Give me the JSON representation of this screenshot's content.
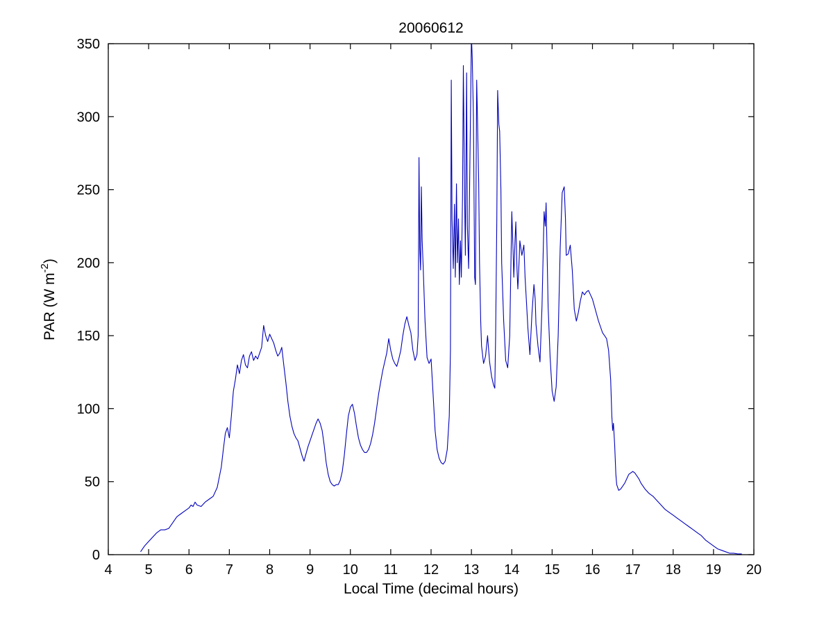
{
  "figure": {
    "title": "20060612"
  },
  "chart_data": {
    "type": "line",
    "title": "20060612",
    "xlabel": "Local Time (decimal hours)",
    "ylabel": "PAR (W m^-2)",
    "ylabel_parts": {
      "prefix": "PAR (W m",
      "sup": "-2",
      "suffix": ")"
    },
    "xlim": [
      4,
      20
    ],
    "ylim": [
      0,
      350
    ],
    "xticks": [
      4,
      5,
      6,
      7,
      8,
      9,
      10,
      11,
      12,
      13,
      14,
      15,
      16,
      17,
      18,
      19,
      20
    ],
    "yticks": [
      0,
      50,
      100,
      150,
      200,
      250,
      300,
      350
    ],
    "grid": false,
    "legend": "none",
    "line_color": "#0000bb",
    "series": [
      {
        "name": "PAR",
        "color": "#0000bb",
        "points": [
          [
            4.8,
            2
          ],
          [
            4.85,
            4
          ],
          [
            4.9,
            6
          ],
          [
            5.0,
            9
          ],
          [
            5.1,
            12
          ],
          [
            5.2,
            15
          ],
          [
            5.3,
            17
          ],
          [
            5.4,
            17
          ],
          [
            5.5,
            18
          ],
          [
            5.6,
            22
          ],
          [
            5.7,
            26
          ],
          [
            5.8,
            28
          ],
          [
            5.9,
            30
          ],
          [
            6.0,
            32
          ],
          [
            6.05,
            34
          ],
          [
            6.1,
            33
          ],
          [
            6.15,
            36
          ],
          [
            6.2,
            34
          ],
          [
            6.3,
            33
          ],
          [
            6.4,
            36
          ],
          [
            6.5,
            38
          ],
          [
            6.6,
            40
          ],
          [
            6.7,
            46
          ],
          [
            6.8,
            60
          ],
          [
            6.85,
            72
          ],
          [
            6.9,
            83
          ],
          [
            6.95,
            87
          ],
          [
            7.0,
            80
          ],
          [
            7.05,
            95
          ],
          [
            7.1,
            112
          ],
          [
            7.15,
            120
          ],
          [
            7.2,
            130
          ],
          [
            7.25,
            124
          ],
          [
            7.3,
            133
          ],
          [
            7.35,
            137
          ],
          [
            7.4,
            130
          ],
          [
            7.45,
            128
          ],
          [
            7.5,
            136
          ],
          [
            7.55,
            139
          ],
          [
            7.6,
            133
          ],
          [
            7.65,
            136
          ],
          [
            7.7,
            134
          ],
          [
            7.75,
            138
          ],
          [
            7.8,
            142
          ],
          [
            7.85,
            157
          ],
          [
            7.9,
            150
          ],
          [
            7.95,
            146
          ],
          [
            8.0,
            151
          ],
          [
            8.05,
            148
          ],
          [
            8.1,
            145
          ],
          [
            8.15,
            140
          ],
          [
            8.2,
            136
          ],
          [
            8.25,
            138
          ],
          [
            8.3,
            142
          ],
          [
            8.35,
            130
          ],
          [
            8.4,
            118
          ],
          [
            8.45,
            105
          ],
          [
            8.5,
            95
          ],
          [
            8.55,
            88
          ],
          [
            8.6,
            83
          ],
          [
            8.65,
            80
          ],
          [
            8.7,
            78
          ],
          [
            8.75,
            73
          ],
          [
            8.8,
            68
          ],
          [
            8.85,
            64
          ],
          [
            8.9,
            69
          ],
          [
            8.95,
            74
          ],
          [
            9.0,
            78
          ],
          [
            9.05,
            82
          ],
          [
            9.1,
            86
          ],
          [
            9.15,
            90
          ],
          [
            9.2,
            93
          ],
          [
            9.25,
            90
          ],
          [
            9.3,
            85
          ],
          [
            9.35,
            75
          ],
          [
            9.4,
            63
          ],
          [
            9.45,
            55
          ],
          [
            9.5,
            50
          ],
          [
            9.55,
            48
          ],
          [
            9.6,
            47
          ],
          [
            9.65,
            48
          ],
          [
            9.7,
            48
          ],
          [
            9.75,
            51
          ],
          [
            9.8,
            57
          ],
          [
            9.85,
            68
          ],
          [
            9.9,
            82
          ],
          [
            9.95,
            95
          ],
          [
            10.0,
            101
          ],
          [
            10.05,
            103
          ],
          [
            10.1,
            97
          ],
          [
            10.15,
            88
          ],
          [
            10.2,
            80
          ],
          [
            10.25,
            75
          ],
          [
            10.3,
            72
          ],
          [
            10.35,
            70
          ],
          [
            10.4,
            70
          ],
          [
            10.45,
            72
          ],
          [
            10.5,
            76
          ],
          [
            10.55,
            82
          ],
          [
            10.6,
            90
          ],
          [
            10.65,
            100
          ],
          [
            10.7,
            110
          ],
          [
            10.75,
            118
          ],
          [
            10.8,
            126
          ],
          [
            10.85,
            132
          ],
          [
            10.9,
            138
          ],
          [
            10.95,
            148
          ],
          [
            11.0,
            140
          ],
          [
            11.05,
            134
          ],
          [
            11.1,
            131
          ],
          [
            11.15,
            129
          ],
          [
            11.2,
            134
          ],
          [
            11.25,
            140
          ],
          [
            11.3,
            150
          ],
          [
            11.35,
            158
          ],
          [
            11.4,
            163
          ],
          [
            11.45,
            157
          ],
          [
            11.5,
            152
          ],
          [
            11.55,
            140
          ],
          [
            11.6,
            133
          ],
          [
            11.65,
            137
          ],
          [
            11.68,
            150
          ],
          [
            11.7,
            272
          ],
          [
            11.72,
            210
          ],
          [
            11.74,
            195
          ],
          [
            11.76,
            252
          ],
          [
            11.78,
            215
          ],
          [
            11.8,
            200
          ],
          [
            11.85,
            160
          ],
          [
            11.9,
            135
          ],
          [
            11.95,
            131
          ],
          [
            12.0,
            134
          ],
          [
            12.05,
            110
          ],
          [
            12.1,
            85
          ],
          [
            12.15,
            72
          ],
          [
            12.2,
            66
          ],
          [
            12.25,
            63
          ],
          [
            12.3,
            62
          ],
          [
            12.35,
            64
          ],
          [
            12.4,
            72
          ],
          [
            12.45,
            95
          ],
          [
            12.48,
            140
          ],
          [
            12.5,
            325
          ],
          [
            12.52,
            230
          ],
          [
            12.55,
            196
          ],
          [
            12.58,
            240
          ],
          [
            12.6,
            190
          ],
          [
            12.63,
            254
          ],
          [
            12.65,
            200
          ],
          [
            12.68,
            230
          ],
          [
            12.7,
            185
          ],
          [
            12.73,
            215
          ],
          [
            12.75,
            190
          ],
          [
            12.78,
            245
          ],
          [
            12.8,
            335
          ],
          [
            12.83,
            250
          ],
          [
            12.85,
            205
          ],
          [
            12.88,
            330
          ],
          [
            12.9,
            225
          ],
          [
            12.93,
            196
          ],
          [
            12.95,
            240
          ],
          [
            12.98,
            310
          ],
          [
            13.0,
            356
          ],
          [
            13.02,
            340
          ],
          [
            13.05,
            300
          ],
          [
            13.08,
            190
          ],
          [
            13.1,
            185
          ],
          [
            13.13,
            325
          ],
          [
            13.15,
            300
          ],
          [
            13.18,
            255
          ],
          [
            13.2,
            200
          ],
          [
            13.23,
            160
          ],
          [
            13.25,
            143
          ],
          [
            13.3,
            131
          ],
          [
            13.35,
            136
          ],
          [
            13.4,
            150
          ],
          [
            13.42,
            143
          ],
          [
            13.45,
            132
          ],
          [
            13.5,
            122
          ],
          [
            13.55,
            116
          ],
          [
            13.58,
            114
          ],
          [
            13.6,
            150
          ],
          [
            13.63,
            230
          ],
          [
            13.65,
            318
          ],
          [
            13.68,
            295
          ],
          [
            13.7,
            290
          ],
          [
            13.73,
            250
          ],
          [
            13.75,
            200
          ],
          [
            13.8,
            160
          ],
          [
            13.85,
            133
          ],
          [
            13.9,
            128
          ],
          [
            13.95,
            150
          ],
          [
            14.0,
            235
          ],
          [
            14.03,
            210
          ],
          [
            14.05,
            190
          ],
          [
            14.08,
            215
          ],
          [
            14.1,
            228
          ],
          [
            14.13,
            195
          ],
          [
            14.15,
            182
          ],
          [
            14.18,
            200
          ],
          [
            14.2,
            215
          ],
          [
            14.25,
            205
          ],
          [
            14.3,
            212
          ],
          [
            14.33,
            190
          ],
          [
            14.35,
            180
          ],
          [
            14.4,
            155
          ],
          [
            14.45,
            137
          ],
          [
            14.5,
            165
          ],
          [
            14.55,
            185
          ],
          [
            14.58,
            175
          ],
          [
            14.6,
            158
          ],
          [
            14.65,
            143
          ],
          [
            14.7,
            132
          ],
          [
            14.75,
            170
          ],
          [
            14.8,
            235
          ],
          [
            14.83,
            225
          ],
          [
            14.85,
            241
          ],
          [
            14.88,
            200
          ],
          [
            14.9,
            170
          ],
          [
            14.95,
            135
          ],
          [
            15.0,
            112
          ],
          [
            15.05,
            105
          ],
          [
            15.1,
            115
          ],
          [
            15.15,
            150
          ],
          [
            15.2,
            210
          ],
          [
            15.25,
            248
          ],
          [
            15.3,
            252
          ],
          [
            15.33,
            230
          ],
          [
            15.35,
            205
          ],
          [
            15.4,
            206
          ],
          [
            15.45,
            212
          ],
          [
            15.5,
            195
          ],
          [
            15.55,
            168
          ],
          [
            15.6,
            160
          ],
          [
            15.65,
            166
          ],
          [
            15.7,
            174
          ],
          [
            15.75,
            180
          ],
          [
            15.8,
            178
          ],
          [
            15.85,
            180
          ],
          [
            15.9,
            181
          ],
          [
            15.95,
            178
          ],
          [
            16.0,
            175
          ],
          [
            16.05,
            170
          ],
          [
            16.1,
            165
          ],
          [
            16.15,
            160
          ],
          [
            16.2,
            156
          ],
          [
            16.25,
            152
          ],
          [
            16.3,
            150
          ],
          [
            16.35,
            148
          ],
          [
            16.4,
            140
          ],
          [
            16.45,
            120
          ],
          [
            16.48,
            95
          ],
          [
            16.5,
            85
          ],
          [
            16.52,
            90
          ],
          [
            16.55,
            75
          ],
          [
            16.58,
            55
          ],
          [
            16.6,
            48
          ],
          [
            16.65,
            44
          ],
          [
            16.7,
            45
          ],
          [
            16.75,
            47
          ],
          [
            16.8,
            49
          ],
          [
            16.85,
            52
          ],
          [
            16.9,
            55
          ],
          [
            16.95,
            56
          ],
          [
            17.0,
            57
          ],
          [
            17.05,
            56
          ],
          [
            17.1,
            54
          ],
          [
            17.15,
            52
          ],
          [
            17.2,
            49
          ],
          [
            17.3,
            45
          ],
          [
            17.4,
            42
          ],
          [
            17.5,
            40
          ],
          [
            17.6,
            37
          ],
          [
            17.7,
            34
          ],
          [
            17.8,
            31
          ],
          [
            17.9,
            29
          ],
          [
            18.0,
            27
          ],
          [
            18.1,
            25
          ],
          [
            18.2,
            23
          ],
          [
            18.3,
            21
          ],
          [
            18.4,
            19
          ],
          [
            18.5,
            17
          ],
          [
            18.6,
            15
          ],
          [
            18.7,
            13
          ],
          [
            18.8,
            10
          ],
          [
            18.9,
            8
          ],
          [
            19.0,
            6
          ],
          [
            19.1,
            4
          ],
          [
            19.2,
            3
          ],
          [
            19.3,
            2
          ],
          [
            19.4,
            1
          ],
          [
            19.5,
            1
          ],
          [
            19.6,
            0.5
          ],
          [
            19.7,
            0.5
          ]
        ]
      }
    ]
  }
}
